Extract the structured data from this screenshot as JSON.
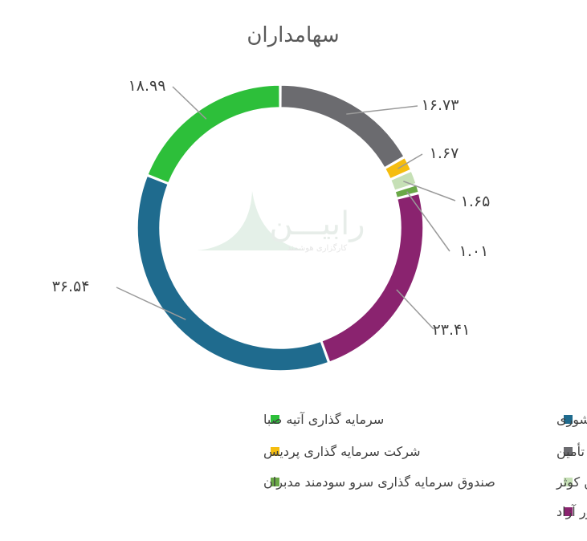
{
  "chart_data": {
    "type": "donut",
    "title": "سهامداران",
    "series": [
      {
        "name": "صندوق بازنشستگی کشوری",
        "value": 36.54,
        "label": "۳۶.۵۴",
        "color": "#1f6b8e"
      },
      {
        "name": "سرمایه گذاری آتیه صبا",
        "value": 18.99,
        "label": "۱۸.۹۹",
        "color": "#2dbf3a"
      },
      {
        "name": "سرمایه گذاری نفت و گاز و پتروشیمی تأمین",
        "value": 16.73,
        "label": "۱۶.۷۳",
        "color": "#6b6b6f"
      },
      {
        "name": "شرکت سرمایه گذاری پردیس",
        "value": 1.67,
        "label": "۱.۶۷",
        "color": "#f5bd0f"
      },
      {
        "name": "شرکت گروه راهبرد مبین کوثر",
        "value": 1.65,
        "label": "۱.۶۵",
        "color": "#c6e0b6"
      },
      {
        "name": "صندوق سرمایه گذاری سرو سودمند مدبران",
        "value": 1.01,
        "label": "۱.۰۱",
        "color": "#6aa847"
      },
      {
        "name": "سهام شناور آزاد",
        "value": 23.41,
        "label": "۲۳.۴۱",
        "color": "#8a236f"
      }
    ],
    "legend_position": "bottom",
    "watermark": {
      "main": "رابیـــن",
      "sub": "کارگزاری هوشمند"
    }
  }
}
